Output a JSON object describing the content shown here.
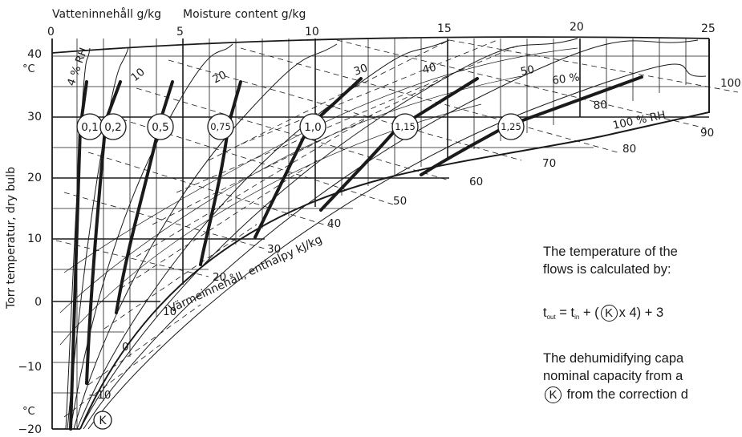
{
  "top_axis": {
    "title_sv": "Vatteninnehåll g/kg",
    "title_en": "Moisture content g/kg",
    "ticks": [
      "0",
      "5",
      "10",
      "15",
      "20",
      "25"
    ]
  },
  "left_axis": {
    "label": "Torr temperatur, dry bulb",
    "unit_top": "°C",
    "unit_bottom": "°C",
    "ticks": [
      "40",
      "30",
      "20",
      "10",
      "0",
      "−10",
      "−20"
    ]
  },
  "rh_labels": [
    "4 % RH",
    "10",
    "20",
    "30",
    "40",
    "50",
    "60 %",
    "80",
    "100 % RH"
  ],
  "edge_labels": [
    "100",
    "90",
    "80",
    "70",
    "60",
    "50",
    "40",
    "30",
    "20",
    "10",
    "0",
    "−10"
  ],
  "enthalpy_label": "Värmeinnehåll, enthalpy kJ/kg",
  "k_values": [
    "0,1",
    "0,2",
    "0,5",
    "0,75",
    "1,0",
    "1,15",
    "1,25"
  ],
  "k_symbol": "K",
  "note": {
    "line1": "The temperature of the",
    "line2": "flows is calculated by:",
    "formula_t": "t",
    "formula_out": "out",
    "formula_eq": " = t",
    "formula_in": "in",
    "formula_mid": " + (",
    "formula_end": "x 4) + 3",
    "line3": "The dehumidifying capa",
    "line4": "nominal capacity from a",
    "line5": "from the correction d"
  }
}
